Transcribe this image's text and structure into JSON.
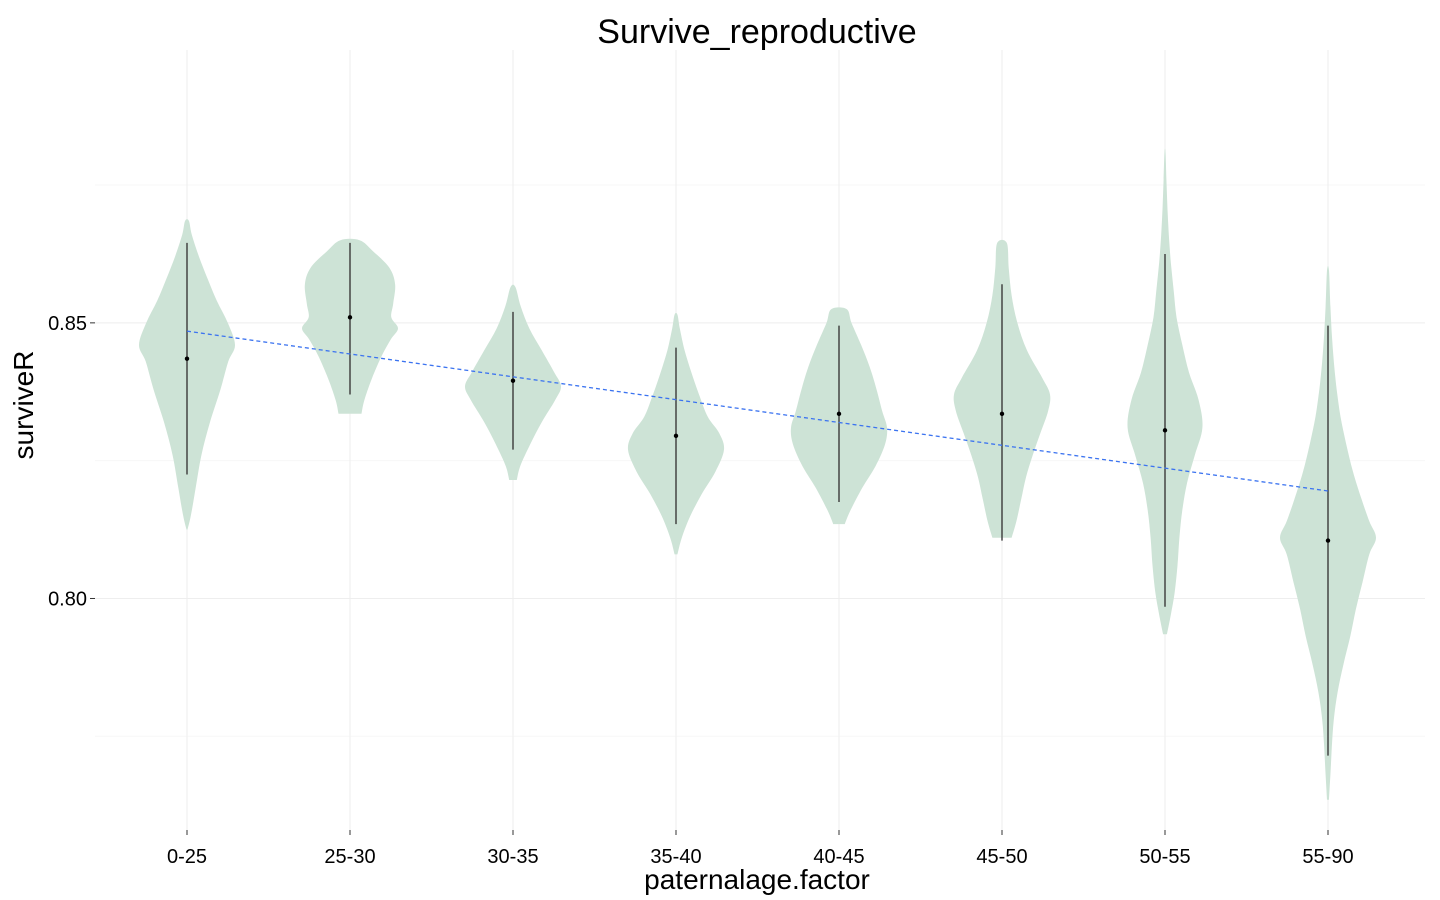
{
  "chart_data": {
    "type": "violin",
    "title": "Survive_reproductive",
    "xlabel": "paternalage.factor",
    "ylabel": "surviveR",
    "ylim": [
      0.758,
      0.8995
    ],
    "y_ticks": [
      0.8,
      0.85
    ],
    "y_tick_labels": [
      "0.80",
      "0.85"
    ],
    "categories": [
      "0-25",
      "25-30",
      "30-35",
      "35-40",
      "40-45",
      "45-50",
      "50-55",
      "55-90"
    ],
    "violins": [
      {
        "category": "0-25",
        "min": 0.8125,
        "max": 0.8685,
        "median": 0.8435,
        "whisker": [
          0.8225,
          0.8645
        ],
        "density": [
          [
            0.8125,
            0.01
          ],
          [
            0.815,
            0.08
          ],
          [
            0.82,
            0.18
          ],
          [
            0.826,
            0.3
          ],
          [
            0.832,
            0.48
          ],
          [
            0.838,
            0.7
          ],
          [
            0.843,
            0.86
          ],
          [
            0.846,
            1.0
          ],
          [
            0.85,
            0.85
          ],
          [
            0.854,
            0.62
          ],
          [
            0.858,
            0.43
          ],
          [
            0.862,
            0.25
          ],
          [
            0.866,
            0.1
          ],
          [
            0.8685,
            0.04
          ]
        ]
      },
      {
        "category": "25-30",
        "min": 0.8335,
        "max": 0.865,
        "median": 0.851,
        "whisker": [
          0.837,
          0.8645
        ],
        "density": [
          [
            0.8335,
            0.24
          ],
          [
            0.836,
            0.3
          ],
          [
            0.84,
            0.46
          ],
          [
            0.844,
            0.66
          ],
          [
            0.847,
            0.85
          ],
          [
            0.849,
            1.0
          ],
          [
            0.851,
            0.86
          ],
          [
            0.8535,
            0.9
          ],
          [
            0.857,
            0.94
          ],
          [
            0.86,
            0.82
          ],
          [
            0.863,
            0.48
          ],
          [
            0.865,
            0.2
          ]
        ]
      },
      {
        "category": "30-35",
        "min": 0.8215,
        "max": 0.8565,
        "median": 0.8395,
        "whisker": [
          0.827,
          0.852
        ],
        "density": [
          [
            0.8215,
            0.08
          ],
          [
            0.824,
            0.15
          ],
          [
            0.828,
            0.36
          ],
          [
            0.832,
            0.6
          ],
          [
            0.836,
            0.88
          ],
          [
            0.8385,
            1.0
          ],
          [
            0.841,
            0.86
          ],
          [
            0.845,
            0.6
          ],
          [
            0.849,
            0.34
          ],
          [
            0.853,
            0.16
          ],
          [
            0.8565,
            0.05
          ]
        ]
      },
      {
        "category": "35-40",
        "min": 0.808,
        "max": 0.8515,
        "median": 0.8295,
        "whisker": [
          0.8135,
          0.8455
        ],
        "density": [
          [
            0.808,
            0.03
          ],
          [
            0.811,
            0.12
          ],
          [
            0.815,
            0.3
          ],
          [
            0.819,
            0.54
          ],
          [
            0.823,
            0.82
          ],
          [
            0.827,
            1.0
          ],
          [
            0.83,
            0.9
          ],
          [
            0.833,
            0.66
          ],
          [
            0.837,
            0.48
          ],
          [
            0.841,
            0.32
          ],
          [
            0.845,
            0.18
          ],
          [
            0.849,
            0.08
          ],
          [
            0.8515,
            0.03
          ]
        ]
      },
      {
        "category": "40-45",
        "min": 0.8135,
        "max": 0.8525,
        "median": 0.8335,
        "whisker": [
          0.8175,
          0.8495
        ],
        "density": [
          [
            0.8135,
            0.12
          ],
          [
            0.816,
            0.24
          ],
          [
            0.82,
            0.48
          ],
          [
            0.824,
            0.76
          ],
          [
            0.828,
            0.96
          ],
          [
            0.831,
            1.0
          ],
          [
            0.834,
            0.9
          ],
          [
            0.838,
            0.78
          ],
          [
            0.842,
            0.64
          ],
          [
            0.846,
            0.46
          ],
          [
            0.85,
            0.26
          ],
          [
            0.8525,
            0.16
          ]
        ]
      },
      {
        "category": "45-50",
        "min": 0.811,
        "max": 0.8645,
        "median": 0.8335,
        "whisker": [
          0.8105,
          0.857
        ],
        "density": [
          [
            0.811,
            0.2
          ],
          [
            0.814,
            0.3
          ],
          [
            0.818,
            0.4
          ],
          [
            0.822,
            0.5
          ],
          [
            0.826,
            0.64
          ],
          [
            0.83,
            0.8
          ],
          [
            0.834,
            0.96
          ],
          [
            0.837,
            1.0
          ],
          [
            0.84,
            0.84
          ],
          [
            0.845,
            0.52
          ],
          [
            0.85,
            0.32
          ],
          [
            0.855,
            0.2
          ],
          [
            0.86,
            0.14
          ],
          [
            0.8645,
            0.1
          ]
        ]
      },
      {
        "category": "50-55",
        "min": 0.7935,
        "max": 0.881,
        "median": 0.8305,
        "whisker": [
          0.7985,
          0.8625
        ],
        "density": [
          [
            0.7935,
            0.04
          ],
          [
            0.797,
            0.12
          ],
          [
            0.801,
            0.2
          ],
          [
            0.806,
            0.26
          ],
          [
            0.811,
            0.3
          ],
          [
            0.816,
            0.36
          ],
          [
            0.821,
            0.46
          ],
          [
            0.826,
            0.62
          ],
          [
            0.831,
            0.78
          ],
          [
            0.836,
            0.7
          ],
          [
            0.841,
            0.5
          ],
          [
            0.846,
            0.36
          ],
          [
            0.851,
            0.24
          ],
          [
            0.856,
            0.18
          ],
          [
            0.861,
            0.12
          ],
          [
            0.866,
            0.08
          ],
          [
            0.871,
            0.05
          ],
          [
            0.876,
            0.03
          ],
          [
            0.881,
            0.01
          ]
        ]
      },
      {
        "category": "55-90",
        "min": 0.7635,
        "max": 0.8595,
        "median": 0.8105,
        "whisker": [
          0.7715,
          0.8495
        ],
        "density": [
          [
            0.7635,
            0.02
          ],
          [
            0.768,
            0.05
          ],
          [
            0.773,
            0.08
          ],
          [
            0.778,
            0.12
          ],
          [
            0.783,
            0.2
          ],
          [
            0.788,
            0.32
          ],
          [
            0.793,
            0.46
          ],
          [
            0.798,
            0.58
          ],
          [
            0.803,
            0.72
          ],
          [
            0.808,
            0.86
          ],
          [
            0.811,
            1.0
          ],
          [
            0.814,
            0.86
          ],
          [
            0.818,
            0.7
          ],
          [
            0.823,
            0.52
          ],
          [
            0.828,
            0.38
          ],
          [
            0.833,
            0.26
          ],
          [
            0.838,
            0.18
          ],
          [
            0.843,
            0.12
          ],
          [
            0.848,
            0.08
          ],
          [
            0.853,
            0.05
          ],
          [
            0.8595,
            0.02
          ]
        ]
      }
    ],
    "trend_line": {
      "start": {
        "category": "0-25",
        "y": 0.8485
      },
      "end": {
        "category": "55-90",
        "y": 0.8195
      }
    },
    "colors": {
      "violin_fill": "#cde3d6",
      "trend_line": "#3b73f0",
      "whisker": "#3a3a3a",
      "median_point": "#000000",
      "grid": "#eeeeee"
    },
    "grid": true,
    "legend": "none"
  }
}
